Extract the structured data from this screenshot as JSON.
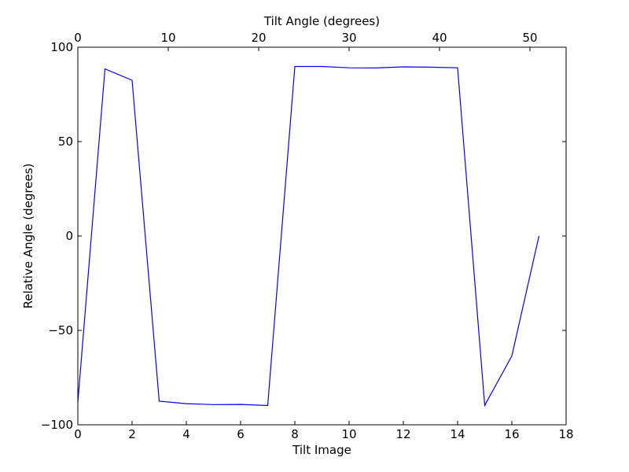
{
  "chart_data": {
    "type": "line",
    "xlabel": "Tilt Image",
    "x2label": "Tilt Angle (degrees)",
    "ylabel": "Relative Angle (degrees)",
    "xlim": [
      0,
      18
    ],
    "x2lim": [
      0,
      54
    ],
    "ylim": [
      -100,
      100
    ],
    "xticks": [
      0,
      2,
      4,
      6,
      8,
      10,
      12,
      14,
      16,
      18
    ],
    "x2ticks": [
      0,
      10,
      20,
      30,
      40,
      50
    ],
    "yticks": [
      -100,
      -50,
      0,
      50,
      100
    ],
    "xtick_labels": [
      "0",
      "2",
      "4",
      "6",
      "8",
      "10",
      "12",
      "14",
      "16",
      "18"
    ],
    "x2tick_labels": [
      "0",
      "10",
      "20",
      "30",
      "40",
      "50"
    ],
    "ytick_labels": [
      "−100",
      "−50",
      "0",
      "50",
      "100"
    ],
    "grid": false,
    "series": [
      {
        "color": "#0000ff",
        "x": [
          0,
          1,
          2,
          3,
          4,
          5,
          6,
          7,
          8,
          9,
          10,
          11,
          12,
          13,
          14,
          15,
          16,
          17
        ],
        "y": [
          -88,
          88.5,
          82.5,
          -87.5,
          -88.8,
          -89.3,
          -89.2,
          -89.8,
          89.8,
          89.8,
          89.1,
          89.0,
          89.6,
          89.4,
          89.1,
          -89.7,
          -63.5,
          0
        ]
      }
    ]
  }
}
